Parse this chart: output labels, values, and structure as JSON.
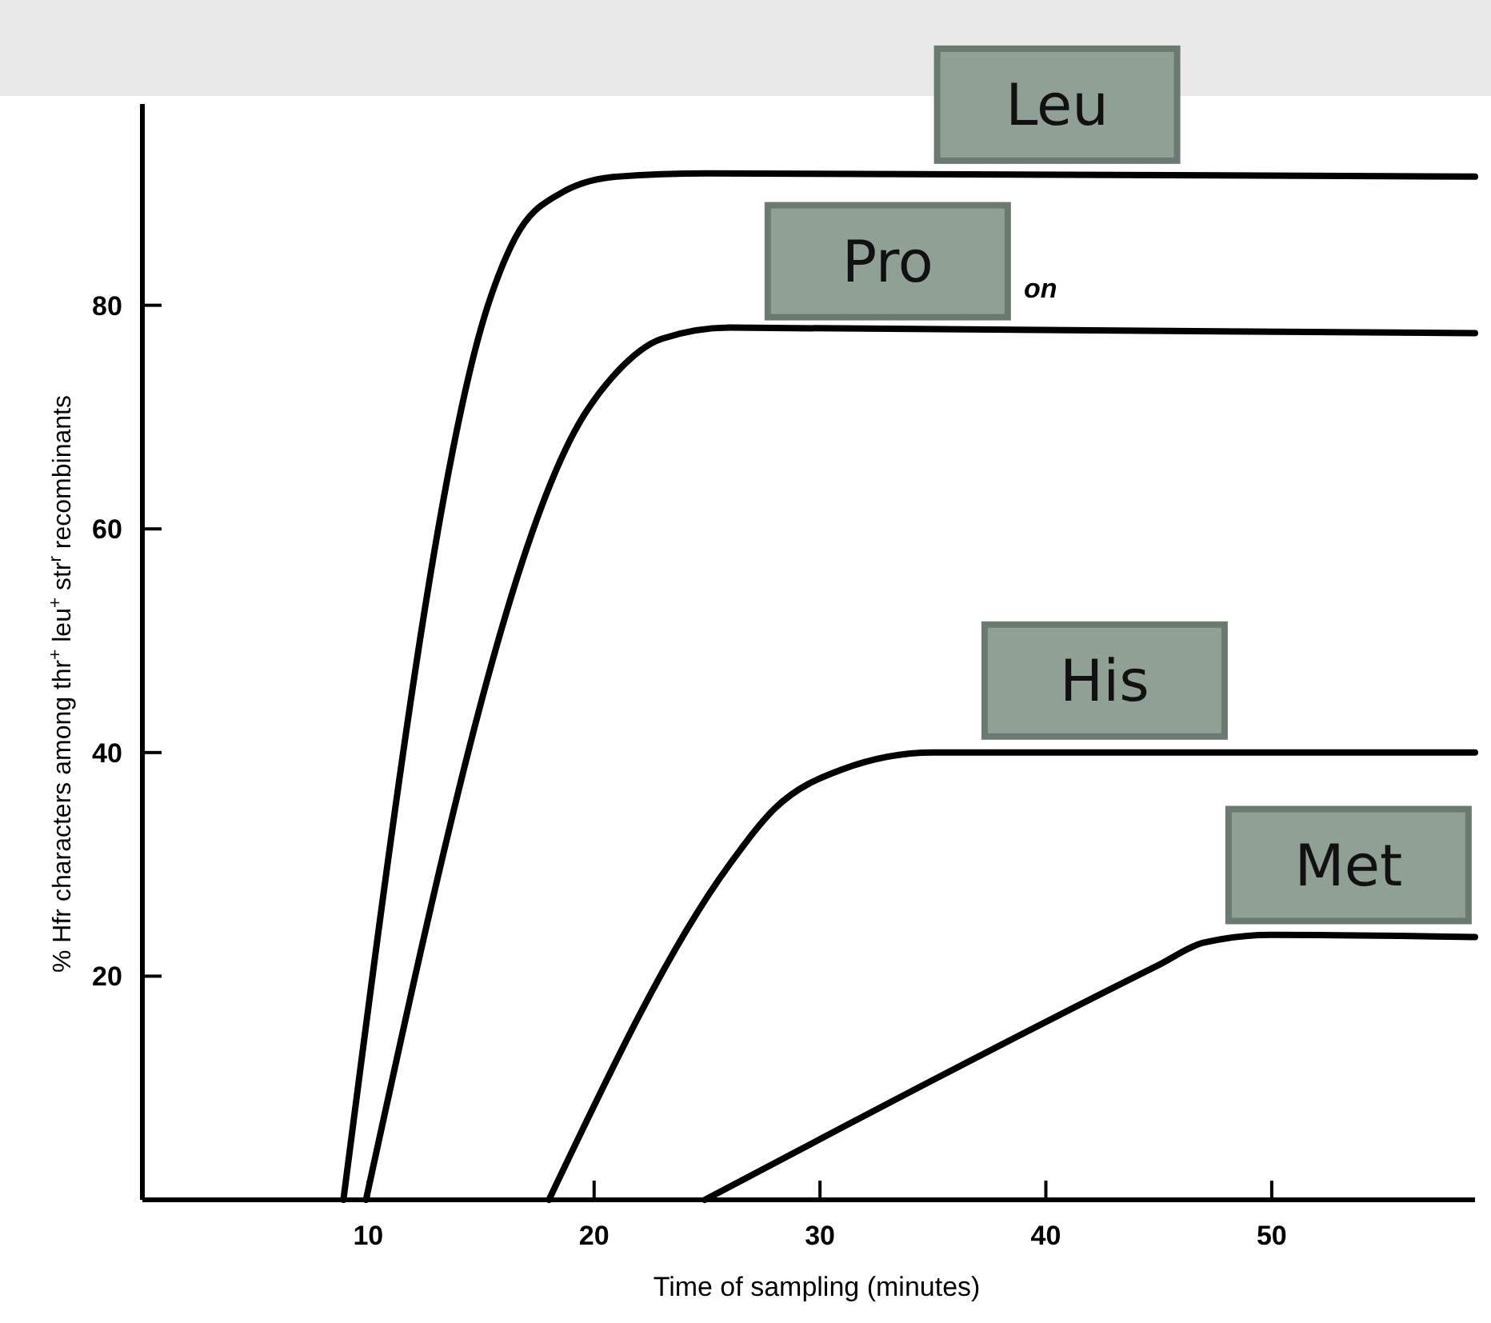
{
  "chart_data": {
    "type": "line",
    "xlabel": "Time of sampling (minutes)",
    "ylabel": "% Hfr characters among thr$^{+}$ leu$^{+}$ str$^{r}$ recombinants",
    "xlim": [
      0,
      59
    ],
    "ylim": [
      0,
      98
    ],
    "xticks": [
      10,
      20,
      30,
      40,
      50
    ],
    "yticks": [
      20,
      40,
      60,
      80
    ],
    "grid": false,
    "marker": "none",
    "line_style": "solid",
    "annotations": [
      "on"
    ],
    "series": [
      {
        "name": "Leu",
        "color": "#000000",
        "x": [
          8.9,
          15.3,
          16.5,
          18.5,
          21,
          25,
          59
        ],
        "values": [
          0,
          80,
          86,
          90,
          91.5,
          91.8,
          91.5
        ]
      },
      {
        "name": "Pro",
        "color": "#000000",
        "x": [
          9.9,
          19.5,
          21,
          23,
          26,
          59
        ],
        "values": [
          0,
          70,
          74,
          77,
          78,
          77.5
        ]
      },
      {
        "name": "His",
        "color": "#000000",
        "x": [
          18,
          26,
          28,
          31,
          35,
          59
        ],
        "values": [
          0,
          30,
          35,
          38.5,
          40,
          40
        ]
      },
      {
        "name": "Met",
        "color": "#000000",
        "x": [
          24.9,
          45,
          47,
          50,
          59
        ],
        "values": [
          0,
          21,
          23,
          23.7,
          23.5
        ]
      }
    ]
  }
}
